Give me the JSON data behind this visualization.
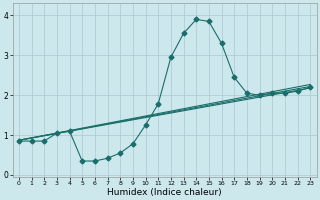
{
  "xlabel": "Humidex (Indice chaleur)",
  "xlim": [
    -0.5,
    23.5
  ],
  "ylim": [
    -0.05,
    4.3
  ],
  "xticks": [
    0,
    1,
    2,
    3,
    4,
    5,
    6,
    7,
    8,
    9,
    10,
    11,
    12,
    13,
    14,
    15,
    16,
    17,
    18,
    19,
    20,
    21,
    22,
    23
  ],
  "yticks": [
    0,
    1,
    2,
    3,
    4
  ],
  "bg_color": "#cce8ed",
  "line_color": "#1a6e6a",
  "grid_color": "#aac8ce",
  "line1_x": [
    0,
    1,
    2,
    3,
    4,
    5,
    6,
    7,
    8,
    9,
    10,
    11,
    12,
    13,
    14,
    15,
    16,
    17,
    18,
    19,
    20,
    21,
    22,
    23
  ],
  "line1_y": [
    0.85,
    0.85,
    0.85,
    1.05,
    1.1,
    0.35,
    0.35,
    0.42,
    0.55,
    0.78,
    1.25,
    1.78,
    2.95,
    3.55,
    3.9,
    3.85,
    3.3,
    2.45,
    2.05,
    2.0,
    2.05,
    2.05,
    2.1,
    2.2
  ],
  "line2_x": [
    0,
    23
  ],
  "line2_y": [
    0.87,
    2.18
  ],
  "line3_x": [
    0,
    23
  ],
  "line3_y": [
    0.87,
    2.22
  ],
  "line4_x": [
    0,
    23
  ],
  "line4_y": [
    0.87,
    2.27
  ]
}
